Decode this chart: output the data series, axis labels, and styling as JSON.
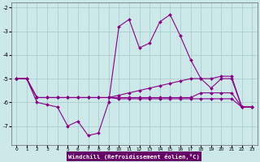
{
  "xlabel": "Windchill (Refroidissement éolien,°C)",
  "background_color": "#cce8e8",
  "grid_color": "#aad0d0",
  "line_color": "#880088",
  "x_hours": [
    0,
    1,
    2,
    3,
    4,
    5,
    6,
    7,
    8,
    9,
    10,
    11,
    12,
    13,
    14,
    15,
    16,
    17,
    18,
    19,
    20,
    21,
    22,
    23
  ],
  "series1": [
    -5.0,
    -5.0,
    -6.0,
    -6.1,
    -6.2,
    -7.0,
    -6.8,
    -7.4,
    -7.3,
    -6.0,
    -2.8,
    -2.5,
    -3.7,
    -3.5,
    -2.6,
    -2.3,
    -3.2,
    -4.2,
    -5.0,
    -5.4,
    -5.0,
    -5.0,
    -6.2,
    -6.2
  ],
  "series2": [
    -5.0,
    -5.0,
    -5.8,
    -5.8,
    -5.8,
    -5.8,
    -5.8,
    -5.8,
    -5.8,
    -5.8,
    -5.7,
    -5.6,
    -5.5,
    -5.4,
    -5.3,
    -5.2,
    -5.1,
    -5.0,
    -5.0,
    -5.0,
    -4.9,
    -4.9,
    -6.2,
    -6.2
  ],
  "series3": [
    -5.0,
    -5.0,
    -5.8,
    -5.8,
    -5.8,
    -5.8,
    -5.8,
    -5.8,
    -5.8,
    -5.8,
    -5.8,
    -5.8,
    -5.8,
    -5.8,
    -5.8,
    -5.8,
    -5.8,
    -5.8,
    -5.6,
    -5.6,
    -5.6,
    -5.6,
    -6.2,
    -6.2
  ],
  "series4": [
    -5.0,
    -5.0,
    -5.8,
    -5.8,
    -5.8,
    -5.8,
    -5.8,
    -5.8,
    -5.8,
    -5.8,
    -5.85,
    -5.85,
    -5.85,
    -5.85,
    -5.85,
    -5.85,
    -5.85,
    -5.85,
    -5.85,
    -5.85,
    -5.85,
    -5.85,
    -6.2,
    -6.2
  ],
  "ylim": [
    -7.8,
    -1.8
  ],
  "xlim": [
    -0.5,
    23.5
  ],
  "yticks": [
    -7,
    -6,
    -5,
    -4,
    -3,
    -2
  ],
  "xticks": [
    0,
    1,
    2,
    3,
    4,
    5,
    6,
    7,
    8,
    9,
    10,
    11,
    12,
    13,
    14,
    15,
    16,
    17,
    18,
    19,
    20,
    21,
    22,
    23
  ]
}
